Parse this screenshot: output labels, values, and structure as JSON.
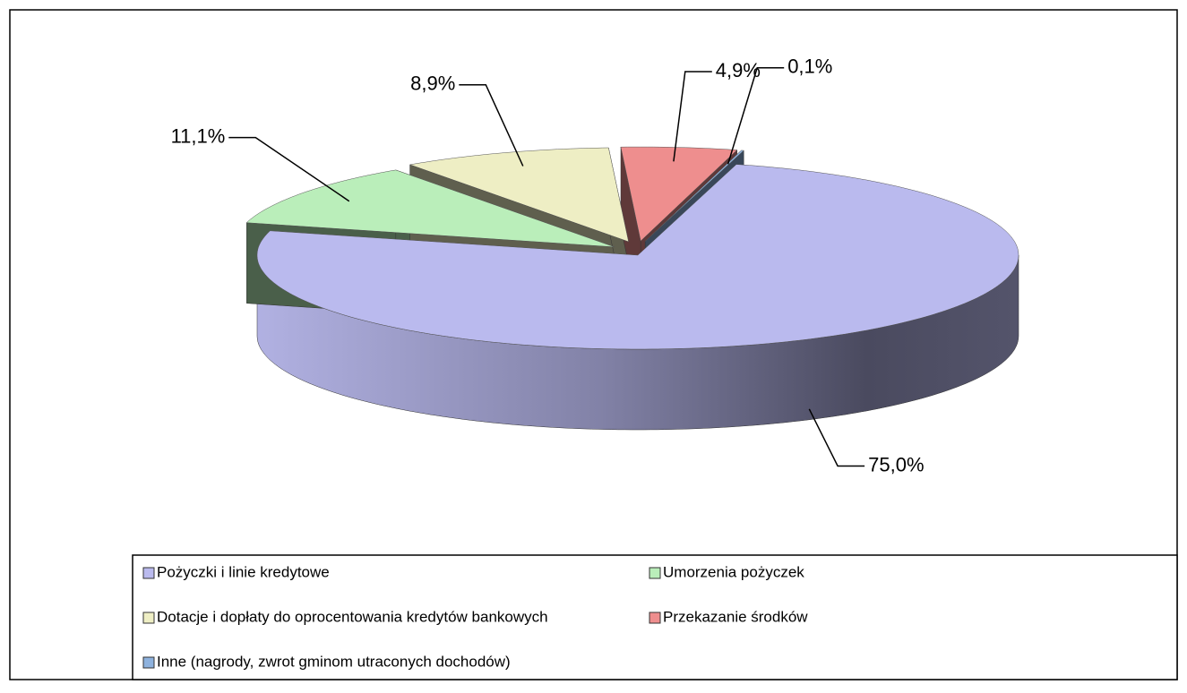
{
  "chart_data": {
    "type": "pie3d",
    "categories": [
      "Pożyczki i linie kredytowe",
      "Umorzenia pożyczek",
      "Dotacje i dopłaty do oprocentowania kredytów bankowych",
      "Przekazanie środków",
      "Inne (nagrody, zwrot gminom utraconych dochodów)"
    ],
    "values": [
      75.0,
      11.1,
      8.9,
      4.9,
      0.1
    ],
    "value_labels": [
      "75,0%",
      "11,1%",
      "8,9%",
      "4,9%",
      "0,1%"
    ],
    "colors": [
      "#babaee",
      "#baeeba",
      "#eeeec4",
      "#ee8e8e",
      "#8eb2de"
    ],
    "legend": "bottom"
  }
}
